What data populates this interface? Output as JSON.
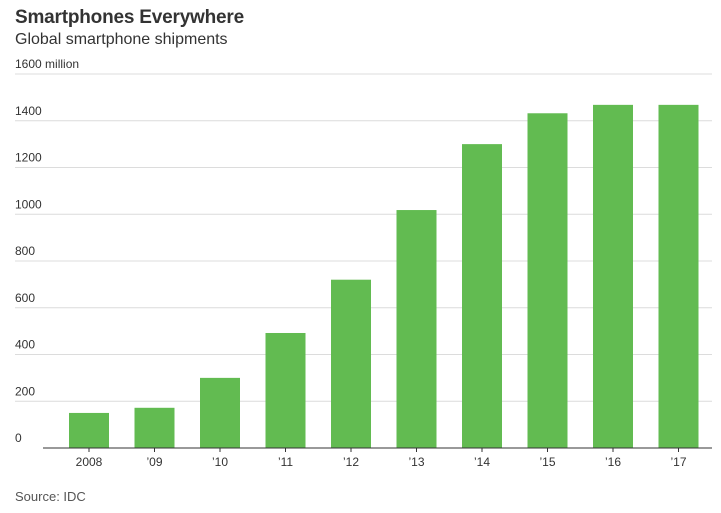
{
  "chart_data": {
    "type": "bar",
    "title": "Smartphones Everywhere",
    "subtitle": "Global smartphone shipments",
    "xlabel": "",
    "ylabel": "",
    "y_unit_label": "1600 million",
    "categories": [
      "2008",
      "’09",
      "’10",
      "’11",
      "’12",
      "’13",
      "’14",
      "’15",
      "’16",
      "’17"
    ],
    "values": [
      150,
      172,
      300,
      492,
      720,
      1018,
      1300,
      1432,
      1468,
      1468
    ],
    "ylim": [
      0,
      1600
    ],
    "y_ticks": [
      0,
      200,
      400,
      600,
      800,
      1000,
      1200,
      1400,
      1600
    ],
    "y_tick_labels": [
      "0",
      "200",
      "400",
      "600",
      "800",
      "1000",
      "1200",
      "1400",
      "1600 million"
    ],
    "grid": true,
    "bar_color": "#62bb51",
    "source": "Source: IDC"
  }
}
